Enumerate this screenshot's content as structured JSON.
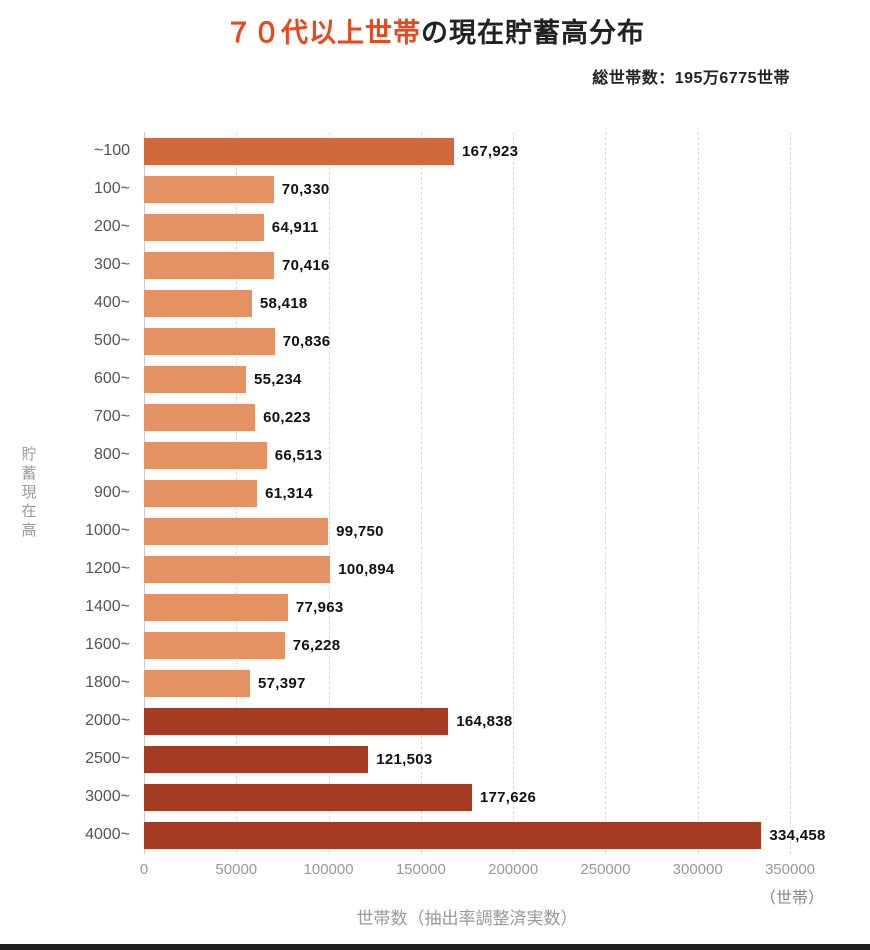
{
  "header": {
    "title_highlight": "７０代以上世帯",
    "title_rest": "の現在貯蓄高分布",
    "subtitle": "総世帯数：195万6775世帯"
  },
  "chart_data": {
    "type": "bar",
    "orientation": "horizontal",
    "title": "７０代以上世帯の現在貯蓄高分布",
    "subtitle": "総世帯数：195万6775世帯",
    "ylabel": "貯蓄現在高",
    "xlabel": "世帯数（抽出率調整済実数）",
    "x_unit": "（世帯）",
    "xlim": [
      0,
      350000
    ],
    "x_tick_labels": [
      "0",
      "50000",
      "100000",
      "150000",
      "200000",
      "250000",
      "300000",
      "350000"
    ],
    "grid": "vertical-dashed",
    "legend": "none",
    "categories": [
      "~100",
      "100~",
      "200~",
      "300~",
      "400~",
      "500~",
      "600~",
      "700~",
      "800~",
      "900~",
      "1000~",
      "1200~",
      "1400~",
      "1600~",
      "1800~",
      "2000~",
      "2500~",
      "3000~",
      "4000~"
    ],
    "values": [
      167923,
      70330,
      64911,
      70416,
      58418,
      70836,
      55234,
      60223,
      66513,
      61314,
      99750,
      100894,
      77963,
      76228,
      57397,
      164838,
      121503,
      177626,
      334458
    ],
    "value_labels": [
      "167,923",
      "70,330",
      "64,911",
      "70,416",
      "58,418",
      "70,836",
      "55,234",
      "60,223",
      "66,513",
      "61,314",
      "99,750",
      "100,894",
      "77,963",
      "76,228",
      "57,397",
      "164,838",
      "121,503",
      "177,626",
      "334,458"
    ],
    "color_groups": [
      "highlight",
      "light",
      "light",
      "light",
      "light",
      "light",
      "light",
      "light",
      "light",
      "light",
      "light",
      "light",
      "light",
      "light",
      "light",
      "dark",
      "dark",
      "dark",
      "dark"
    ],
    "palette": {
      "highlight": "#d1693b",
      "light": "#e49263",
      "dark": "#a53b23"
    },
    "title_highlight_color": "#e8481c"
  }
}
